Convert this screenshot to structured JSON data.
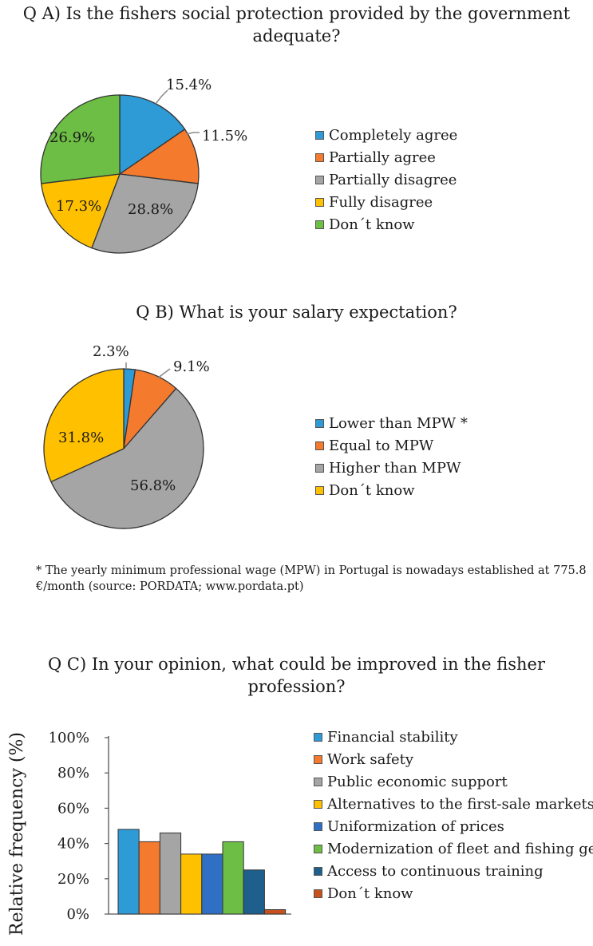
{
  "footnote": "* The yearly minimum professional wage (MPW) in Portugal is nowadays established at 775.8 €/month (source: PORDATA; www.pordata.pt)",
  "colors": {
    "blue": "#2E9BD7",
    "orange": "#F47A2E",
    "gray": "#A5A5A5",
    "yellow": "#FFC000",
    "green": "#6DBE44",
    "darkblue": "#2F6FC4",
    "navy": "#1E5F8E",
    "rust": "#C8501E"
  },
  "chart_data": [
    {
      "type": "pie",
      "title_lines": [
        "Q A) Is the fishers social protection provided by the government",
        "adequate?"
      ],
      "categories": [
        "Completely agree",
        "Partially agree",
        "Partially disagree",
        "Fully disagree",
        "Don´t know"
      ],
      "values": [
        15.4,
        11.5,
        28.8,
        17.3,
        26.9
      ],
      "labels": [
        "15.4%",
        "11.5%",
        "28.8%",
        "17.3%",
        "26.9%"
      ],
      "colors": [
        "#2E9BD7",
        "#F47A2E",
        "#A5A5A5",
        "#FFC000",
        "#6DBE44"
      ],
      "legend_position": "right"
    },
    {
      "type": "pie",
      "title_lines": [
        "Q B) What is your salary expectation?"
      ],
      "categories": [
        "Lower than MPW *",
        "Equal to MPW",
        "Higher than MPW",
        "Don´t know"
      ],
      "values": [
        2.3,
        9.1,
        56.8,
        31.8
      ],
      "labels": [
        "2.3%",
        "9.1%",
        "56.8%",
        "31.8%"
      ],
      "colors": [
        "#2E9BD7",
        "#F47A2E",
        "#A5A5A5",
        "#FFC000"
      ],
      "legend_position": "right"
    },
    {
      "type": "bar",
      "title_lines": [
        "Q C) In your opinion, what could be improved in the fisher",
        "profession?"
      ],
      "ylabel": "Relative frequency (%)",
      "ylim": [
        0,
        100
      ],
      "yticks": [
        "0%",
        "20%",
        "40%",
        "60%",
        "80%",
        "100%"
      ],
      "categories": [
        "Financial stability",
        "Work safety",
        "Public economic support",
        "Alternatives to the first-sale markets",
        "Uniformization of prices",
        "Modernization of fleet and fishing gear",
        "Access to continuous training",
        "Don´t know"
      ],
      "values": [
        48,
        41,
        46,
        34,
        34,
        41,
        25,
        2.5
      ],
      "colors": [
        "#2E9BD7",
        "#F47A2E",
        "#A5A5A5",
        "#FFC000",
        "#2F6FC4",
        "#6DBE44",
        "#1E5F8E",
        "#C8501E"
      ],
      "legend_position": "right"
    }
  ]
}
